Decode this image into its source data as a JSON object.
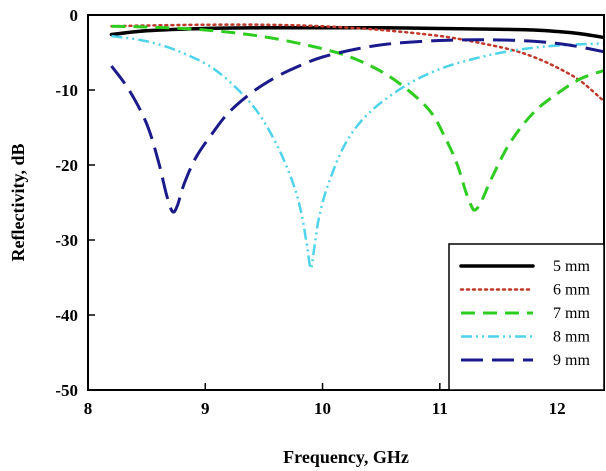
{
  "chart_data": {
    "type": "line",
    "title": "",
    "xlabel": "Frequency, GHz",
    "ylabel": "Reflectivity, dB",
    "xlim": [
      8,
      12.4
    ],
    "ylim": [
      -50,
      0
    ],
    "xticks": [
      8,
      9,
      10,
      11,
      12
    ],
    "yticks": [
      0,
      -10,
      -20,
      -30,
      -40,
      -50
    ],
    "grid": false,
    "legend_position": "bottom-right",
    "series": [
      {
        "name": "5 mm",
        "color": "#000000",
        "style": "solid",
        "x": [
          8.2,
          8.5,
          9.0,
          9.5,
          10.0,
          10.5,
          11.0,
          11.5,
          11.8,
          12.0,
          12.2,
          12.4
        ],
        "y": [
          -2.6,
          -2.1,
          -1.8,
          -1.7,
          -1.7,
          -1.7,
          -1.8,
          -1.9,
          -2.0,
          -2.2,
          -2.5,
          -3.0
        ]
      },
      {
        "name": "6 mm",
        "color": "#c0392b",
        "style": "dotted",
        "x": [
          8.2,
          8.5,
          9.0,
          9.5,
          10.0,
          10.5,
          11.0,
          11.3,
          11.6,
          11.8,
          12.0,
          12.2,
          12.4
        ],
        "y": [
          -1.5,
          -1.4,
          -1.3,
          -1.3,
          -1.5,
          -2.0,
          -2.8,
          -3.6,
          -4.6,
          -5.6,
          -7.0,
          -8.8,
          -11.5
        ]
      },
      {
        "name": "7 mm",
        "color": "#2ecc1f",
        "style": "dashed",
        "x": [
          8.2,
          8.5,
          9.0,
          9.5,
          10.0,
          10.3,
          10.6,
          10.9,
          11.05,
          11.15,
          11.22,
          11.27,
          11.3,
          11.35,
          11.45,
          11.6,
          11.8,
          12.0,
          12.2,
          12.4
        ],
        "y": [
          -1.5,
          -1.6,
          -2.0,
          -2.9,
          -4.5,
          -6.0,
          -8.5,
          -12.5,
          -16.5,
          -20.0,
          -23.5,
          -25.5,
          -26.0,
          -25.0,
          -21.5,
          -17.0,
          -13.0,
          -10.5,
          -8.5,
          -7.4
        ]
      },
      {
        "name": "8 mm",
        "color": "#4dd4ea",
        "style": "dash-dot-dot",
        "x": [
          8.2,
          8.5,
          8.8,
          9.1,
          9.4,
          9.6,
          9.75,
          9.82,
          9.87,
          9.9,
          9.93,
          9.97,
          10.05,
          10.2,
          10.4,
          10.7,
          11.0,
          11.3,
          11.6,
          11.9,
          12.2,
          12.4
        ],
        "y": [
          -2.8,
          -3.5,
          -5.0,
          -7.5,
          -12.0,
          -17.0,
          -22.5,
          -26.5,
          -31.0,
          -33.8,
          -31.0,
          -27.0,
          -22.5,
          -17.0,
          -13.0,
          -9.5,
          -7.2,
          -5.8,
          -4.8,
          -4.2,
          -3.9,
          -3.8
        ]
      },
      {
        "name": "9 mm",
        "color": "#1a1a8c",
        "style": "long-dashed",
        "x": [
          8.2,
          8.35,
          8.5,
          8.6,
          8.67,
          8.72,
          8.76,
          8.82,
          8.92,
          9.05,
          9.2,
          9.4,
          9.6,
          9.8,
          10.0,
          10.3,
          10.6,
          11.0,
          11.4,
          11.8,
          12.1,
          12.4
        ],
        "y": [
          -6.8,
          -10.0,
          -14.5,
          -19.5,
          -24.0,
          -26.2,
          -25.5,
          -22.5,
          -19.0,
          -16.0,
          -13.0,
          -10.3,
          -8.3,
          -6.8,
          -5.6,
          -4.5,
          -3.8,
          -3.4,
          -3.3,
          -3.5,
          -4.0,
          -4.9
        ]
      }
    ]
  }
}
